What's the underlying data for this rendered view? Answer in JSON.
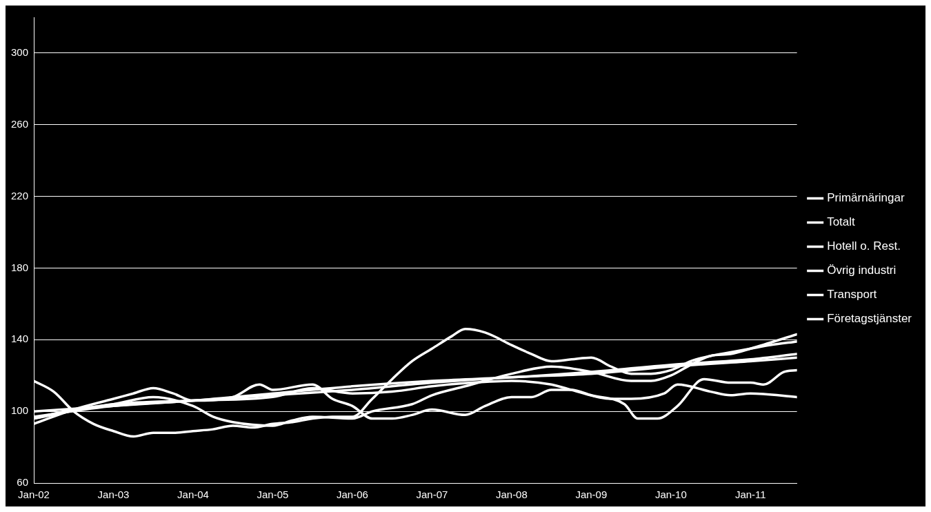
{
  "chart_data": {
    "type": "line",
    "xlim": [
      "2002-01",
      "2011-08"
    ],
    "xticks": [
      {
        "value": "2002-01",
        "label": "Jan-02"
      },
      {
        "value": "2003-01",
        "label": "Jan-03"
      },
      {
        "value": "2004-01",
        "label": "Jan-04"
      },
      {
        "value": "2005-01",
        "label": "Jan-05"
      },
      {
        "value": "2006-01",
        "label": "Jan-06"
      },
      {
        "value": "2007-01",
        "label": "Jan-07"
      },
      {
        "value": "2008-01",
        "label": "Jan-08"
      },
      {
        "value": "2009-01",
        "label": "Jan-09"
      },
      {
        "value": "2010-01",
        "label": "Jan-10"
      },
      {
        "value": "2011-01",
        "label": "Jan-11"
      }
    ],
    "ylim": [
      60,
      320
    ],
    "yticks": [
      60,
      100,
      140,
      180,
      220,
      260,
      300
    ],
    "grid": "y",
    "legend": "right",
    "marker": "none",
    "line_style": "solid",
    "series": [
      {
        "name": "Primärnäringar",
        "color": "#ffffff",
        "x": [
          "2002-01",
          "2002-04",
          "2002-07",
          "2002-10",
          "2003-01",
          "2003-04",
          "2003-07",
          "2003-10",
          "2004-01",
          "2004-04",
          "2004-07",
          "2004-10",
          "2005-01",
          "2005-04",
          "2005-07",
          "2005-10",
          "2006-01",
          "2006-04",
          "2006-07",
          "2006-10",
          "2007-01",
          "2007-04",
          "2007-06",
          "2007-09",
          "2008-01",
          "2008-04",
          "2008-07",
          "2008-10",
          "2009-01",
          "2009-04",
          "2009-07",
          "2009-10",
          "2010-01",
          "2010-04",
          "2010-07",
          "2010-10",
          "2011-01",
          "2011-04",
          "2011-08"
        ],
        "values": [
          117,
          111,
          100,
          93,
          89,
          86,
          88,
          88,
          89,
          90,
          92,
          91,
          93,
          94,
          96,
          97,
          97,
          107,
          118,
          128,
          135,
          142,
          146,
          144,
          137,
          132,
          128,
          129,
          130,
          125,
          121,
          121,
          123,
          128,
          131,
          133,
          135,
          137,
          139
        ]
      },
      {
        "name": "Totalt",
        "color": "#ffffff",
        "x": [
          "2002-01",
          "2003-01",
          "2004-01",
          "2005-01",
          "2006-01",
          "2007-01",
          "2008-01",
          "2009-01",
          "2010-01",
          "2011-01",
          "2011-08"
        ],
        "values": [
          100,
          103,
          106,
          109,
          112,
          116,
          119,
          121,
          125,
          128,
          130
        ]
      },
      {
        "name": "Hotell o. Rest.",
        "color": "#ffffff",
        "x": [
          "2002-01",
          "2002-07",
          "2003-01",
          "2003-04",
          "2003-07",
          "2003-10",
          "2004-01",
          "2004-07",
          "2004-11",
          "2005-01",
          "2005-07",
          "2005-10",
          "2006-01",
          "2006-04",
          "2006-07",
          "2006-10",
          "2007-01",
          "2007-06",
          "2007-09",
          "2008-01",
          "2008-04",
          "2008-07",
          "2008-10",
          "2009-01",
          "2009-06",
          "2009-08",
          "2009-11",
          "2010-02",
          "2010-06",
          "2010-10",
          "2011-01",
          "2011-03",
          "2011-06",
          "2011-08"
        ],
        "values": [
          93,
          101,
          107,
          110,
          113,
          110,
          106,
          108,
          115,
          112,
          115,
          107,
          103,
          96,
          96,
          98,
          101,
          98,
          103,
          108,
          108,
          112,
          112,
          109,
          104,
          96,
          96,
          103,
          118,
          116,
          116,
          115,
          122,
          123
        ]
      },
      {
        "name": "Övrig industri",
        "color": "#ffffff",
        "x": [
          "2002-01",
          "2002-07",
          "2003-01",
          "2003-07",
          "2004-01",
          "2004-04",
          "2004-07",
          "2005-01",
          "2005-04",
          "2005-07",
          "2006-01",
          "2006-04",
          "2006-10",
          "2007-01",
          "2007-06",
          "2008-01",
          "2008-07",
          "2009-01",
          "2009-07",
          "2009-10",
          "2010-01",
          "2010-04",
          "2010-07",
          "2010-10",
          "2011-01",
          "2011-08"
        ],
        "values": [
          96,
          101,
          104,
          108,
          103,
          97,
          94,
          92,
          95,
          97,
          96,
          100,
          104,
          109,
          114,
          121,
          125,
          122,
          117,
          117,
          120,
          126,
          131,
          132,
          135,
          143
        ]
      },
      {
        "name": "Transport",
        "color": "#ffffff",
        "x": [
          "2002-01",
          "2003-01",
          "2004-01",
          "2005-01",
          "2005-07",
          "2006-01",
          "2006-07",
          "2007-01",
          "2007-07",
          "2008-01",
          "2008-07",
          "2008-10",
          "2009-04",
          "2009-07",
          "2009-12",
          "2010-02",
          "2010-07",
          "2010-10",
          "2011-01",
          "2011-08"
        ],
        "values": [
          96,
          104,
          106,
          108,
          113,
          110,
          111,
          114,
          116,
          117,
          115,
          112,
          107,
          107,
          110,
          115,
          111,
          109,
          110,
          108
        ]
      },
      {
        "name": "Företagstjänster",
        "color": "#ffffff",
        "x": [
          "2002-01",
          "2003-01",
          "2004-01",
          "2005-01",
          "2006-01",
          "2007-01",
          "2008-01",
          "2009-01",
          "2010-01",
          "2011-01",
          "2011-08"
        ],
        "values": [
          97,
          103,
          106,
          110,
          114,
          117,
          119,
          122,
          126,
          129,
          132
        ]
      }
    ]
  }
}
